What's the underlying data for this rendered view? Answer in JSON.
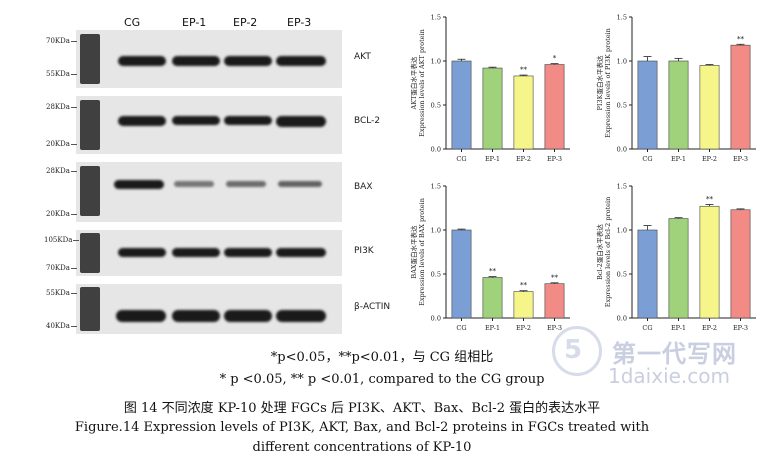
{
  "blot": {
    "lanes": [
      "CG",
      "EP-1",
      "EP-2",
      "EP-3"
    ],
    "panels": [
      {
        "protein": "AKT",
        "markers": [
          "70KDa",
          "55KDa"
        ]
      },
      {
        "protein": "BCL-2",
        "markers": [
          "28KDa",
          "20KDa"
        ]
      },
      {
        "protein": "BAX",
        "markers": [
          "28KDa",
          "20KDa"
        ]
      },
      {
        "protein": "PI3K",
        "markers": [
          "105KDa",
          "70KDa"
        ]
      },
      {
        "protein": "β-ACTIN",
        "markers": [
          "55KDa",
          "40KDa"
        ]
      }
    ]
  },
  "chart_data": [
    {
      "type": "bar",
      "categories": [
        "CG",
        "EP-1",
        "EP-2",
        "EP-3"
      ],
      "values": [
        1.0,
        0.92,
        0.83,
        0.96
      ],
      "errors": [
        0.02,
        0.01,
        0.01,
        0.01
      ],
      "significance": [
        "",
        "",
        "**",
        "*"
      ],
      "ylabel": "AKT蛋白水平表达",
      "ylabel2": "Expression levels of AKT protein",
      "ylim": [
        0,
        1.5
      ],
      "yticks": [
        "0.0",
        "0.5",
        "1.0",
        "1.5"
      ],
      "colors": [
        "#7b9fd4",
        "#9fd27a",
        "#f5f58a",
        "#f28a85"
      ]
    },
    {
      "type": "bar",
      "categories": [
        "CG",
        "EP-1",
        "EP-2",
        "EP-3"
      ],
      "values": [
        1.0,
        1.0,
        0.95,
        1.18
      ],
      "errors": [
        0.05,
        0.03,
        0.01,
        0.01
      ],
      "significance": [
        "",
        "",
        "",
        "**"
      ],
      "ylabel": "PI3K蛋白水平表达",
      "ylabel2": "Expression levels of PI3K protein",
      "ylim": [
        0,
        1.5
      ],
      "yticks": [
        "0.0",
        "0.5",
        "1.0",
        "1.5"
      ],
      "colors": [
        "#7b9fd4",
        "#9fd27a",
        "#f5f58a",
        "#f28a85"
      ]
    },
    {
      "type": "bar",
      "categories": [
        "CG",
        "EP-1",
        "EP-2",
        "EP-3"
      ],
      "values": [
        1.0,
        0.46,
        0.3,
        0.39
      ],
      "errors": [
        0.01,
        0.01,
        0.01,
        0.01
      ],
      "significance": [
        "",
        "**",
        "**",
        "**"
      ],
      "ylabel": "BAX蛋白水平表达",
      "ylabel2": "Expression levels of BAX protein",
      "ylim": [
        0,
        1.5
      ],
      "yticks": [
        "0.0",
        "0.5",
        "1.0",
        "1.5"
      ],
      "colors": [
        "#7b9fd4",
        "#9fd27a",
        "#f5f58a",
        "#f28a85"
      ]
    },
    {
      "type": "bar",
      "categories": [
        "CG",
        "EP-1",
        "EP-2",
        "EP-3"
      ],
      "values": [
        1.0,
        1.13,
        1.27,
        1.23
      ],
      "errors": [
        0.05,
        0.01,
        0.02,
        0.01
      ],
      "significance": [
        "",
        "",
        "**",
        ""
      ],
      "ylabel": "Bcl-2蛋白水平表达",
      "ylabel2": "Expression levels of Bcl-2 protein",
      "ylim": [
        0,
        1.5
      ],
      "yticks": [
        "0.0",
        "0.5",
        "1.0",
        "1.5"
      ],
      "colors": [
        "#7b9fd4",
        "#9fd27a",
        "#f5f58a",
        "#f28a85"
      ]
    }
  ],
  "captions": {
    "sig_cn": "*p<0.05，**p<0.01，与 CG 组相比",
    "sig_en": "* p <0.05, ** p <0.01, compared to the CG group",
    "fig_cn": "图 14  不同浓度 KP-10 处理 FGCs 后 PI3K、AKT、Bax、Bcl-2 蛋白的表达水平",
    "fig_en_1": "Figure.14 Expression levels of PI3K, AKT, Bax, and Bcl-2 proteins in FGCs treated with",
    "fig_en_2": "different concentrations of KP-10"
  },
  "watermark": {
    "cn": "第一代写网",
    "en": "1daixie.com"
  }
}
